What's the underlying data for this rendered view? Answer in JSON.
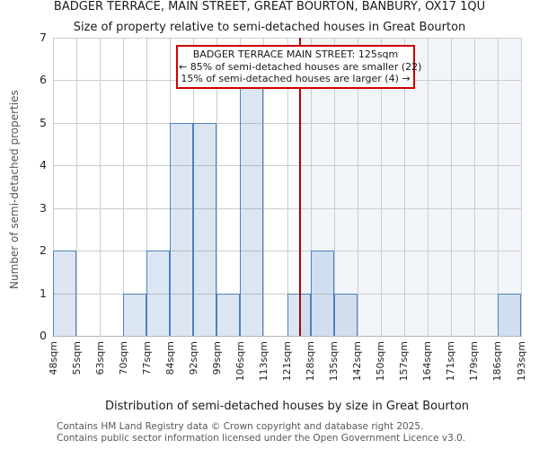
{
  "page": {
    "title_line1": "BADGER TERRACE, MAIN STREET, GREAT BOURTON, BANBURY, OX17 1QU",
    "title_line2": "Size of property relative to semi-detached houses in Great Bourton",
    "footer_line1": "Contains HM Land Registry data © Crown copyright and database right 2025.",
    "footer_line2": "Contains public sector information licensed under the Open Government Licence v3.0."
  },
  "chart_data": {
    "type": "bar",
    "title": "BADGER TERRACE, MAIN STREET, GREAT BOURTON, BANBURY, OX17 1QU",
    "subtitle": "Size of property relative to semi-detached houses in Great Bourton",
    "xlabel": "Distribution of semi-detached houses by size in Great Bourton",
    "ylabel": "Number of semi-detached properties",
    "ylim": [
      0,
      7
    ],
    "yticks": [
      0,
      1,
      2,
      3,
      4,
      5,
      6,
      7
    ],
    "grid": true,
    "bin_edges_sqm": [
      48,
      55,
      63,
      70,
      77,
      84,
      92,
      99,
      106,
      113,
      121,
      128,
      135,
      142,
      150,
      157,
      164,
      171,
      179,
      186,
      193
    ],
    "tick_labels": [
      "48sqm",
      "55sqm",
      "63sqm",
      "70sqm",
      "77sqm",
      "84sqm",
      "92sqm",
      "99sqm",
      "106sqm",
      "113sqm",
      "121sqm",
      "128sqm",
      "135sqm",
      "142sqm",
      "150sqm",
      "157sqm",
      "164sqm",
      "171sqm",
      "179sqm",
      "186sqm",
      "193sqm"
    ],
    "counts": [
      2,
      0,
      0,
      1,
      2,
      5,
      5,
      1,
      6,
      0,
      1,
      2,
      1,
      0,
      0,
      0,
      0,
      0,
      0,
      1
    ],
    "marker": {
      "value_sqm": 125,
      "label_line1": "BADGER TERRACE MAIN STREET: 125sqm",
      "label_line2": "← 85% of semi-detached houses are smaller (22)",
      "label_line3": "15% of semi-detached houses are larger (4) →",
      "smaller_count": 22,
      "larger_count": 4
    },
    "colors": {
      "bar_fill": "#dce6f2",
      "bar_edge": "#4f81bd",
      "shade_right_of_marker": "#f1f5fa",
      "gridline": "#cccccc",
      "marker_line": "#b00000",
      "annotation_border": "#cc0000"
    }
  }
}
